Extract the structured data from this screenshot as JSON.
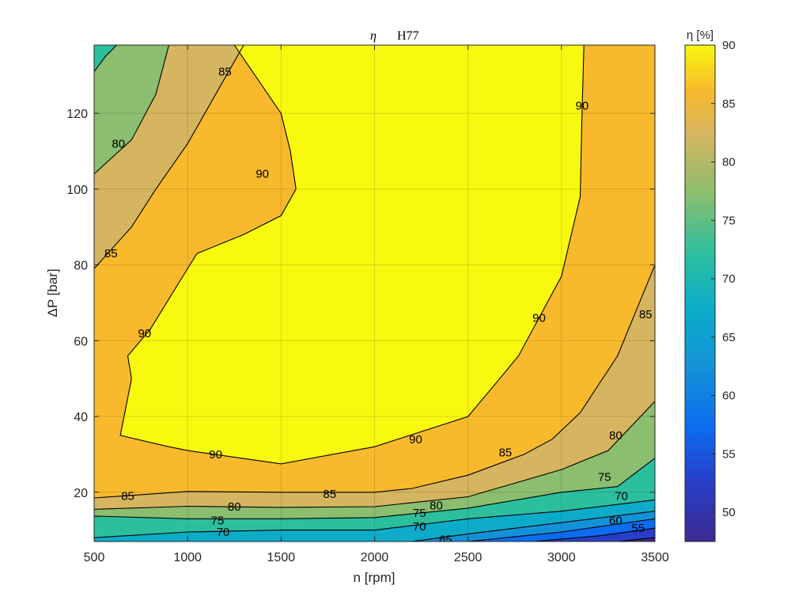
{
  "chart_data": {
    "type": "contour",
    "title": "H77",
    "title_symbol": "η",
    "xlabel": "n [rpm]",
    "ylabel": "ΔP [bar]",
    "xlim": [
      500,
      3500
    ],
    "ylim": [
      7,
      138
    ],
    "xticks": [
      "500",
      "1000",
      "1500",
      "2000",
      "2500",
      "3000",
      "3500"
    ],
    "yticks": [
      "20",
      "40",
      "60",
      "80",
      "100",
      "120"
    ],
    "grid": true,
    "colorbar": {
      "label": "η [%]",
      "min": 47.5,
      "max": 90,
      "ticks": [
        "50",
        "55",
        "60",
        "65",
        "70",
        "75",
        "80",
        "85",
        "90"
      ]
    },
    "levels": [
      {
        "value": 90,
        "color": "#f9f80f"
      },
      {
        "value": 85,
        "color": "#f8ba2c"
      },
      {
        "value": 80,
        "color": "#d6b560"
      },
      {
        "value": 75,
        "color": "#8bbe6e"
      },
      {
        "value": 70,
        "color": "#2cbf9e"
      },
      {
        "value": 65,
        "color": "#0cacc8"
      },
      {
        "value": 60,
        "color": "#1492d8"
      },
      {
        "value": 55,
        "color": "#0c6cf0"
      },
      {
        "value": 50,
        "color": "#283ec8"
      }
    ],
    "regions_below_85": [
      {
        "value": 80,
        "color": "#d6b560"
      },
      {
        "value": 75,
        "color": "#8bbe6e"
      },
      {
        "value": 70,
        "color": "#2cbf9e"
      },
      {
        "value": 65,
        "color": "#0cacc8"
      },
      {
        "value": 60,
        "color": "#1492d8"
      },
      {
        "value": 55,
        "color": "#0c6cf0"
      }
    ],
    "contours": [
      {
        "level": 90,
        "label": "90",
        "closed": true,
        "points": [
          [
            1250,
            138
          ],
          [
            1500,
            120
          ],
          [
            1550,
            110
          ],
          [
            1580,
            100
          ],
          [
            1500,
            93
          ],
          [
            1300,
            88
          ],
          [
            1050,
            83
          ],
          [
            950,
            75
          ],
          [
            800,
            63
          ],
          [
            680,
            56
          ],
          [
            700,
            50
          ],
          [
            640,
            35
          ],
          [
            900,
            32
          ],
          [
            1000,
            31
          ],
          [
            1500,
            27.5
          ],
          [
            2000,
            32
          ],
          [
            2500,
            40
          ],
          [
            2670,
            50
          ],
          [
            2770,
            56
          ],
          [
            3000,
            77
          ],
          [
            3100,
            98
          ],
          [
            3110,
            120
          ],
          [
            3120,
            138
          ]
        ]
      },
      {
        "level": 85,
        "label": "85",
        "points": [
          [
            500,
            79
          ],
          [
            700,
            90
          ],
          [
            830,
            100
          ],
          [
            1000,
            112
          ],
          [
            1150,
            125
          ],
          [
            1300,
            138
          ]
        ]
      },
      {
        "level": 80,
        "label": "80",
        "points": [
          [
            500,
            104
          ],
          [
            700,
            113
          ],
          [
            830,
            125
          ],
          [
            900,
            138
          ]
        ]
      },
      {
        "level": 75,
        "label": "75",
        "points": [
          [
            500,
            131
          ],
          [
            560,
            135
          ],
          [
            620,
            138
          ]
        ]
      },
      {
        "level": 85,
        "label": "85",
        "points": [
          [
            500,
            18.5
          ],
          [
            1000,
            20.2
          ],
          [
            1500,
            20
          ],
          [
            2000,
            20
          ],
          [
            2200,
            21
          ],
          [
            2500,
            24.5
          ],
          [
            2800,
            30
          ],
          [
            2950,
            34
          ],
          [
            3100,
            41
          ],
          [
            3300,
            56
          ],
          [
            3500,
            80
          ]
        ]
      },
      {
        "level": 80,
        "label": "80",
        "points": [
          [
            500,
            15.5
          ],
          [
            1000,
            16.3
          ],
          [
            1500,
            16
          ],
          [
            2000,
            16.2
          ],
          [
            2500,
            18.8
          ],
          [
            3000,
            26
          ],
          [
            3250,
            31
          ],
          [
            3500,
            44
          ]
        ]
      },
      {
        "level": 75,
        "label": "75",
        "points": [
          [
            500,
            13.7
          ],
          [
            1000,
            13
          ],
          [
            1500,
            13
          ],
          [
            2000,
            13.3
          ],
          [
            2500,
            15.8
          ],
          [
            3000,
            20
          ],
          [
            3300,
            21.5
          ],
          [
            3500,
            29
          ]
        ]
      },
      {
        "level": 70,
        "label": "70",
        "points": [
          [
            500,
            8
          ],
          [
            1000,
            9.5
          ],
          [
            1500,
            10
          ],
          [
            2000,
            10
          ],
          [
            2500,
            13
          ],
          [
            3000,
            15
          ],
          [
            3500,
            18
          ]
        ]
      },
      {
        "level": 65,
        "label": "65",
        "points": [
          [
            2200,
            7
          ],
          [
            2500,
            9
          ],
          [
            3000,
            12
          ],
          [
            3500,
            15
          ]
        ]
      },
      {
        "level": 60,
        "label": "60",
        "points": [
          [
            2500,
            7
          ],
          [
            3000,
            9.5
          ],
          [
            3500,
            13
          ]
        ]
      },
      {
        "level": 55,
        "label": "55",
        "points": [
          [
            2850,
            7
          ],
          [
            3200,
            8.5
          ],
          [
            3500,
            10.5
          ]
        ]
      },
      {
        "level": 50,
        "label": "",
        "points": [
          [
            3300,
            7
          ],
          [
            3500,
            8
          ]
        ]
      }
    ],
    "contour_labels": [
      {
        "text": "85",
        "x": 1200,
        "y": 131
      },
      {
        "text": "80",
        "x": 630,
        "y": 112
      },
      {
        "text": "90",
        "x": 1400,
        "y": 104
      },
      {
        "text": "85",
        "x": 590,
        "y": 83
      },
      {
        "text": "90",
        "x": 770,
        "y": 62
      },
      {
        "text": "90",
        "x": 3110,
        "y": 122
      },
      {
        "text": "90",
        "x": 2880,
        "y": 66
      },
      {
        "text": "85",
        "x": 3450,
        "y": 67
      },
      {
        "text": "90",
        "x": 1150,
        "y": 30
      },
      {
        "text": "90",
        "x": 2220,
        "y": 34
      },
      {
        "text": "85",
        "x": 2700,
        "y": 30.5
      },
      {
        "text": "80",
        "x": 3290,
        "y": 35
      },
      {
        "text": "75",
        "x": 3230,
        "y": 24
      },
      {
        "text": "70",
        "x": 3320,
        "y": 19
      },
      {
        "text": "85",
        "x": 680,
        "y": 19
      },
      {
        "text": "85",
        "x": 1760,
        "y": 19.5
      },
      {
        "text": "80",
        "x": 1250,
        "y": 16.2
      },
      {
        "text": "80",
        "x": 2330,
        "y": 16.5
      },
      {
        "text": "75",
        "x": 1160,
        "y": 12.5
      },
      {
        "text": "75",
        "x": 2240,
        "y": 14.5
      },
      {
        "text": "70",
        "x": 1190,
        "y": 9.5
      },
      {
        "text": "70",
        "x": 2240,
        "y": 11
      },
      {
        "text": "65",
        "x": 2380,
        "y": 7.5
      },
      {
        "text": "60",
        "x": 3290,
        "y": 12.5
      },
      {
        "text": "55",
        "x": 3410,
        "y": 10.5
      }
    ]
  }
}
